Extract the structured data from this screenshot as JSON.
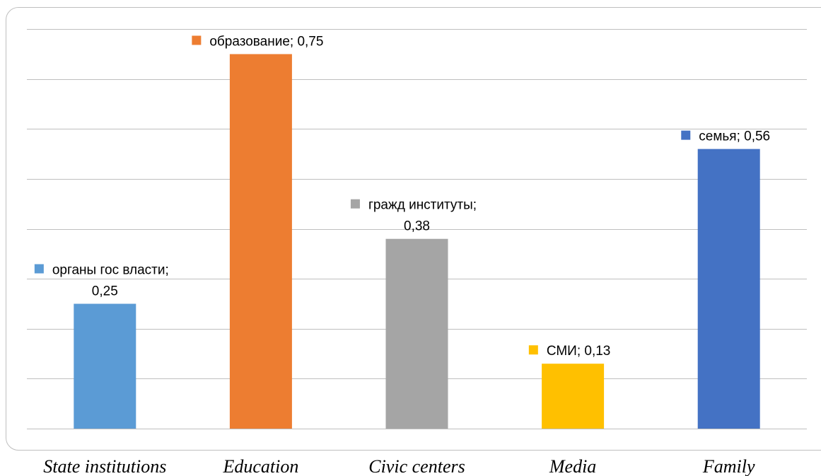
{
  "chart_data": {
    "type": "bar",
    "categories": [
      "State institutions",
      "Education",
      "Civic centers",
      "Media",
      "Family"
    ],
    "values": [
      0.25,
      0.75,
      0.38,
      0.13,
      0.56
    ],
    "data_labels": [
      [
        "органы гос власти;",
        "0,25"
      ],
      [
        "образование; 0,75"
      ],
      [
        "гражд институты;",
        "0,38"
      ],
      [
        "СМИ; 0,13"
      ],
      [
        "семья; 0,56"
      ]
    ],
    "colors": [
      "#5b9bd5",
      "#ed7d31",
      "#a5a5a5",
      "#ffc000",
      "#4472c4"
    ],
    "title": "",
    "xlabel": "",
    "ylabel": "",
    "ylim": [
      0,
      0.8
    ],
    "gridlines": true,
    "grid_step": 0.1,
    "y_tick_labels_shown": false,
    "legend": "none"
  }
}
